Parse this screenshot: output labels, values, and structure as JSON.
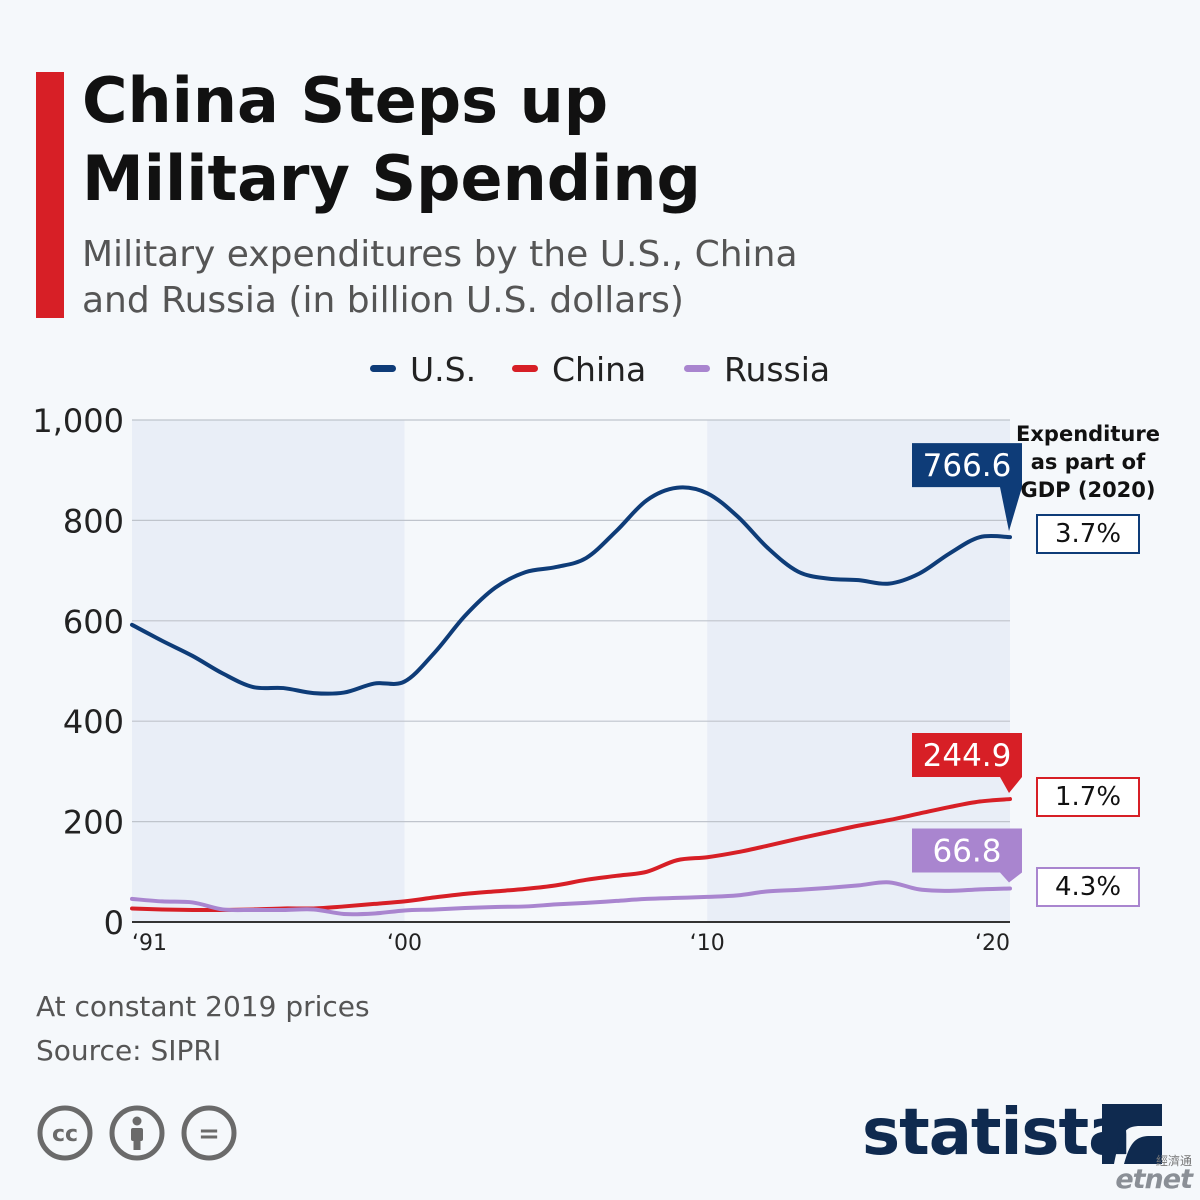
{
  "header": {
    "title_lines": [
      "China Steps up",
      "Military Spending"
    ],
    "subtitle_lines": [
      "Military expenditures by the U.S., China",
      "and Russia (in billion U.S. dollars)"
    ]
  },
  "colors": {
    "us": "#0e3c78",
    "china": "#d71f26",
    "russia": "#a985cf",
    "accent": "#d71f26",
    "brand": "#0f2a4f"
  },
  "chart_data": {
    "type": "line",
    "x": [
      1991,
      1992,
      1993,
      1994,
      1995,
      1996,
      1997,
      1998,
      1999,
      2000,
      2001,
      2002,
      2003,
      2004,
      2005,
      2006,
      2007,
      2008,
      2009,
      2010,
      2011,
      2012,
      2013,
      2014,
      2015,
      2016,
      2017,
      2018,
      2019,
      2020
    ],
    "x_ticks": [
      1991,
      2000,
      2010,
      2020
    ],
    "x_tick_labels": [
      "‘91",
      "‘00",
      "‘10",
      "‘20"
    ],
    "ylim": [
      0,
      1000
    ],
    "y_ticks": [
      0,
      200,
      400,
      600,
      800,
      1000
    ],
    "y_tick_labels": [
      "0",
      "200",
      "400",
      "600",
      "800",
      "1,000"
    ],
    "grid": true,
    "shaded_periods": [
      [
        1991,
        2000
      ],
      [
        2010,
        2020
      ]
    ],
    "legend_position": "top-center",
    "series": [
      {
        "name": "U.S.",
        "color": "#0e3c78",
        "end_label": "766.6",
        "values": [
          592,
          560,
          530,
          495,
          468,
          466,
          456,
          457,
          475,
          479,
          537,
          610,
          666,
          697,
          707,
          725,
          779,
          840,
          865,
          854,
          808,
          745,
          698,
          684,
          681,
          674,
          694,
          734,
          766.6,
          766.6
        ]
      },
      {
        "name": "China",
        "color": "#d71f26",
        "end_label": "244.9",
        "values": [
          27,
          25,
          24,
          24,
          25,
          27,
          27,
          31,
          36,
          41,
          49,
          56,
          61,
          66,
          73,
          84,
          92,
          100,
          123,
          129,
          139,
          152,
          166,
          179,
          192,
          203,
          216,
          229,
          240,
          244.9
        ]
      },
      {
        "name": "Russia",
        "color": "#a985cf",
        "end_label": "66.8",
        "values": [
          46,
          41,
          39,
          25,
          24,
          24,
          25,
          16,
          17,
          23,
          25,
          28,
          30,
          31,
          35,
          38,
          42,
          46,
          48,
          50,
          53,
          61,
          64,
          68,
          73,
          79,
          65,
          62,
          65,
          66.8
        ]
      }
    ]
  },
  "gdp_panel": {
    "title_lines": [
      "Expenditure",
      "as part of",
      "GDP (2020)"
    ],
    "values": [
      {
        "series": "U.S.",
        "label": "3.7%"
      },
      {
        "series": "China",
        "label": "1.7%"
      },
      {
        "series": "Russia",
        "label": "4.3%"
      }
    ]
  },
  "footer": {
    "note": "At constant 2019 prices",
    "source": "Source: SIPRI",
    "license_icons": [
      "cc-icon",
      "attribution-icon",
      "no-derivatives-icon"
    ],
    "license_text": [
      "cc",
      "="
    ],
    "brand": "statista",
    "watermark_top": "經濟通",
    "watermark_bottom": "etnet"
  }
}
